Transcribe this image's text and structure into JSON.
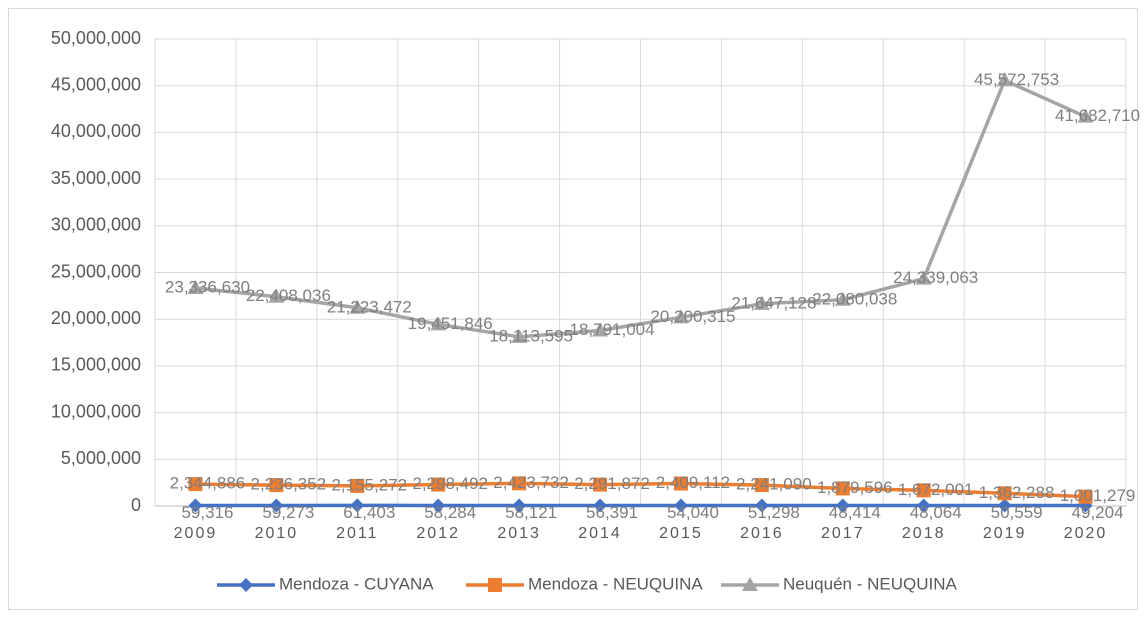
{
  "chart_data": {
    "type": "line",
    "categories": [
      "2009",
      "2010",
      "2011",
      "2012",
      "2013",
      "2014",
      "2015",
      "2016",
      "2017",
      "2018",
      "2019",
      "2020"
    ],
    "ylim": [
      0,
      50000000
    ],
    "yticks": [
      0,
      {
        "value": 5000000,
        "label": "5,000,000"
      },
      {
        "value": 10000000,
        "label": "10,000,000"
      },
      {
        "value": 15000000,
        "label": "15,000,000"
      },
      {
        "value": 20000000,
        "label": "20,000,000"
      },
      {
        "value": 25000000,
        "label": "25,000,000"
      },
      {
        "value": 30000000,
        "label": "30,000,000"
      },
      {
        "value": 35000000,
        "label": "35,000,000"
      },
      {
        "value": 40000000,
        "label": "40,000,000"
      },
      {
        "value": 45000000,
        "label": "45,000,000"
      },
      {
        "value": 50000000,
        "label": "50,000,000"
      }
    ],
    "grid": true,
    "legend": "bottom",
    "series": [
      {
        "name": "Mendoza - CUYANA",
        "color": "#4472c4",
        "marker": "diamond",
        "values": [
          59316,
          59273,
          61403,
          58284,
          58121,
          56391,
          54040,
          51298,
          48414,
          48064,
          50559,
          49204
        ],
        "value_labels": [
          "59,316",
          "59,273",
          "61,403",
          "58,284",
          "58,121",
          "56,391",
          "54,040",
          "51,298",
          "48,414",
          "48,064",
          "50,559",
          "49,204"
        ]
      },
      {
        "name": "Mendoza - NEUQUINA",
        "color": "#ed7d31",
        "marker": "square",
        "values": [
          2344886,
          2236352,
          2155272,
          2298492,
          2423732,
          2291872,
          2409112,
          2241090,
          1879596,
          1672001,
          1362288,
          1001279
        ],
        "value_labels": [
          "2,344,886",
          "2,236,352",
          "2,155,272",
          "2,298,492",
          "2,423,732",
          "2,291,872",
          "2,409,112",
          "2,241,090",
          "1,879,596",
          "1,672,001",
          "1,362,288",
          "1,001,279"
        ]
      },
      {
        "name": "Neuquén - NEUQUINA",
        "color": "#a5a5a5",
        "marker": "triangle",
        "values": [
          23336630,
          22408036,
          21223472,
          19451846,
          18113595,
          18791004,
          20200315,
          21647128,
          22080038,
          24339063,
          45572753,
          41682710
        ],
        "value_labels": [
          "23,336,630",
          "22,408,036",
          "21,223,472",
          "19,451,846",
          "18,113,595",
          "18,791,004",
          "20,200,315",
          "21,647,128",
          "22,080,038",
          "24,339,063",
          "45,572,753",
          "41,682,710"
        ]
      }
    ]
  }
}
